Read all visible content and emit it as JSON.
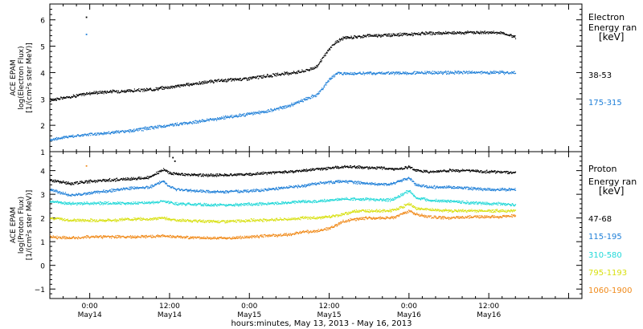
{
  "x_axis": {
    "title": "hours:minutes, May 13, 2013 - May 16, 2013",
    "tick_labels": [
      {
        "time": "0:00",
        "date": "May14",
        "hours": 24
      },
      {
        "time": "12:00",
        "date": "May14",
        "hours": 36
      },
      {
        "time": "0:00",
        "date": "May15",
        "hours": 48
      },
      {
        "time": "12:00",
        "date": "May15",
        "hours": 60
      },
      {
        "time": "0:00",
        "date": "May16",
        "hours": 72
      },
      {
        "time": "12:00",
        "date": "May16",
        "hours": 84
      }
    ],
    "x_units": "hours since 2013-05-13 00:00",
    "xlim": [
      18,
      98
    ]
  },
  "chart_data": [
    {
      "type": "scatter",
      "panel": "electron",
      "ylabel": [
        "ACE EPAM",
        "log(Electron Flux)",
        "[1/(cm²s ster MeV)]"
      ],
      "ylim": [
        1,
        6.6
      ],
      "yticks": [
        1,
        2,
        3,
        4,
        5,
        6
      ],
      "legend_title": [
        "Electron",
        "Energy ran",
        "[keV]"
      ],
      "x": [
        18,
        21,
        24,
        27,
        30,
        33,
        36,
        39,
        42,
        45,
        48,
        51,
        54,
        56,
        58,
        59,
        60,
        61,
        62,
        64,
        66,
        69,
        72,
        75,
        78,
        81,
        84,
        86,
        88
      ],
      "series": [
        {
          "name": "38-53",
          "color": "#000000",
          "values": [
            2.95,
            3.08,
            3.22,
            3.28,
            3.3,
            3.35,
            3.45,
            3.55,
            3.65,
            3.72,
            3.78,
            3.88,
            3.98,
            4.05,
            4.2,
            4.55,
            4.9,
            5.15,
            5.3,
            5.35,
            5.4,
            5.42,
            5.45,
            5.48,
            5.5,
            5.52,
            5.52,
            5.5,
            5.35
          ]
        },
        {
          "name": "175-315",
          "color": "#1e7fd8",
          "values": [
            1.45,
            1.58,
            1.65,
            1.72,
            1.78,
            1.9,
            2.0,
            2.1,
            2.2,
            2.32,
            2.42,
            2.55,
            2.75,
            2.95,
            3.15,
            3.4,
            3.75,
            3.95,
            3.98,
            3.96,
            3.97,
            3.98,
            3.98,
            4.0,
            4.0,
            4.0,
            4.0,
            4.0,
            3.98
          ]
        }
      ],
      "outliers": [
        {
          "x": 23.5,
          "y": 6.1,
          "color": "#000000"
        },
        {
          "x": 23.5,
          "y": 5.45,
          "color": "#1e7fd8"
        }
      ]
    },
    {
      "type": "scatter",
      "panel": "proton",
      "ylabel": [
        "ACE EPAM",
        "log(Proton Flux)",
        "[1/(cm²s ster MeV)]"
      ],
      "ylim": [
        -1.4,
        4.8
      ],
      "yticks": [
        -1,
        0,
        1,
        2,
        3,
        4
      ],
      "legend_title": [
        "Proton",
        "Energy ran",
        "[keV]"
      ],
      "x": [
        18,
        21,
        24,
        27,
        30,
        33,
        35,
        36,
        37,
        39,
        42,
        45,
        48,
        51,
        54,
        56,
        58,
        60,
        62,
        64,
        66,
        69,
        70,
        72,
        73,
        75,
        78,
        81,
        84,
        86,
        88
      ],
      "series": [
        {
          "name": "47-68",
          "color": "#000000",
          "values": [
            3.6,
            3.45,
            3.55,
            3.6,
            3.65,
            3.7,
            4.05,
            3.9,
            3.85,
            3.82,
            3.8,
            3.82,
            3.85,
            3.9,
            3.95,
            4.0,
            4.05,
            4.1,
            4.15,
            4.15,
            4.12,
            4.1,
            4.05,
            4.15,
            4.0,
            3.95,
            4.0,
            4.0,
            3.95,
            3.95,
            3.9
          ]
        },
        {
          "name": "115-195",
          "color": "#1e7fd8",
          "values": [
            3.2,
            2.95,
            3.05,
            3.15,
            3.25,
            3.3,
            3.55,
            3.3,
            3.2,
            3.15,
            3.1,
            3.1,
            3.15,
            3.2,
            3.3,
            3.35,
            3.45,
            3.5,
            3.55,
            3.5,
            3.45,
            3.4,
            3.5,
            3.7,
            3.4,
            3.3,
            3.3,
            3.25,
            3.2,
            3.2,
            3.2
          ]
        },
        {
          "name": "310-580",
          "color": "#20d8d8",
          "values": [
            2.7,
            2.6,
            2.62,
            2.62,
            2.62,
            2.65,
            2.7,
            2.65,
            2.6,
            2.58,
            2.55,
            2.55,
            2.58,
            2.6,
            2.65,
            2.7,
            2.7,
            2.75,
            2.8,
            2.8,
            2.78,
            2.75,
            2.85,
            3.15,
            2.85,
            2.75,
            2.7,
            2.65,
            2.6,
            2.6,
            2.55
          ]
        },
        {
          "name": "795-1193",
          "color": "#d8e010",
          "values": [
            2.0,
            1.9,
            1.9,
            1.9,
            1.95,
            1.95,
            2.0,
            1.95,
            1.9,
            1.88,
            1.85,
            1.85,
            1.9,
            1.92,
            1.95,
            2.0,
            2.0,
            2.05,
            2.15,
            2.3,
            2.3,
            2.3,
            2.35,
            2.6,
            2.4,
            2.35,
            2.3,
            2.3,
            2.3,
            2.3,
            2.3
          ]
        },
        {
          "name": "1060-1900",
          "color": "#f08a1a",
          "values": [
            1.2,
            1.15,
            1.2,
            1.2,
            1.2,
            1.22,
            1.25,
            1.22,
            1.2,
            1.18,
            1.15,
            1.15,
            1.2,
            1.25,
            1.3,
            1.4,
            1.45,
            1.55,
            1.85,
            1.95,
            2.0,
            2.0,
            2.05,
            2.3,
            2.15,
            2.05,
            2.0,
            2.05,
            2.05,
            2.05,
            2.1
          ]
        }
      ],
      "outliers": [
        {
          "x": 23.5,
          "y": 4.2,
          "color": "#f08a1a"
        },
        {
          "x": 36.5,
          "y": 4.55,
          "color": "#000000"
        },
        {
          "x": 36.8,
          "y": 4.4,
          "color": "#000000"
        }
      ]
    }
  ]
}
